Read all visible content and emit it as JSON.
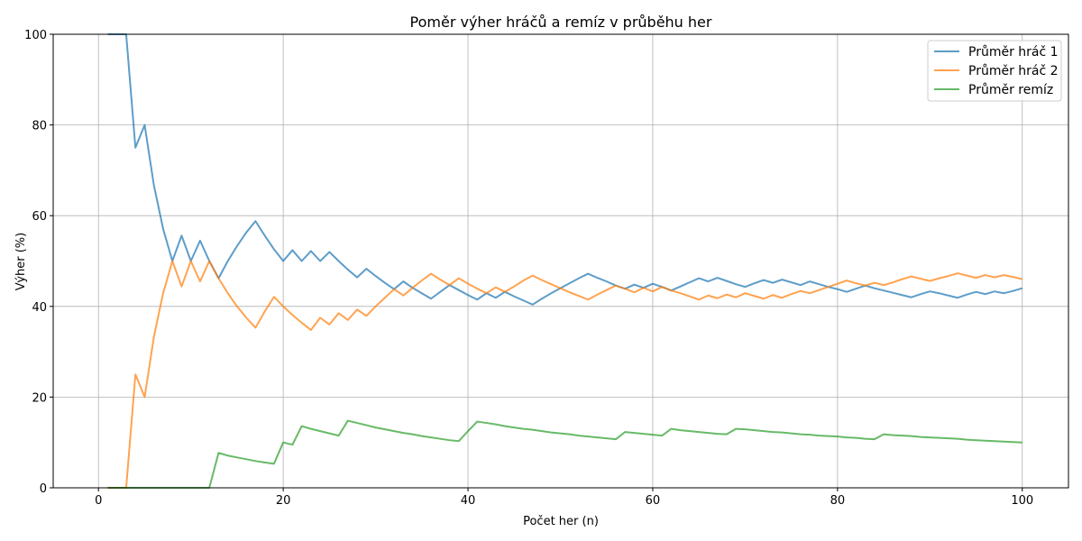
{
  "chart_data": {
    "type": "line",
    "title": "Poměr výher hráčů a remíz v průběhu her",
    "xlabel": "Počet her (n)",
    "ylabel": "Výher (%)",
    "xlim": [
      -4.9,
      105
    ],
    "ylim": [
      0,
      100
    ],
    "xticks": [
      0,
      20,
      40,
      60,
      80,
      100
    ],
    "yticks": [
      0,
      20,
      40,
      60,
      80,
      100
    ],
    "grid": true,
    "legend_position": "top-right",
    "series": [
      {
        "name": "Průměr hráč 1",
        "color": "#1f77b4",
        "points": [
          [
            1,
            100
          ],
          [
            3,
            100
          ],
          [
            4,
            75
          ],
          [
            5,
            80
          ],
          [
            6,
            66.7
          ],
          [
            7,
            57.1
          ],
          [
            8,
            50
          ],
          [
            9,
            55.6
          ],
          [
            10,
            50
          ],
          [
            11,
            54.5
          ],
          [
            12,
            50
          ],
          [
            13,
            46.2
          ],
          [
            14,
            50
          ],
          [
            15,
            53.3
          ],
          [
            16,
            56.3
          ],
          [
            17,
            58.8
          ],
          [
            18,
            55.6
          ],
          [
            19,
            52.6
          ],
          [
            20,
            50
          ],
          [
            21,
            52.4
          ],
          [
            22,
            50
          ],
          [
            23,
            52.2
          ],
          [
            24,
            50
          ],
          [
            25,
            52
          ],
          [
            26,
            50
          ],
          [
            27,
            48.1
          ],
          [
            28,
            46.4
          ],
          [
            29,
            48.3
          ],
          [
            30,
            46.7
          ],
          [
            31,
            45.2
          ],
          [
            32,
            43.8
          ],
          [
            33,
            45.5
          ],
          [
            34,
            44.1
          ],
          [
            35,
            42.9
          ],
          [
            36,
            41.7
          ],
          [
            37,
            43.2
          ],
          [
            38,
            44.7
          ],
          [
            39,
            43.6
          ],
          [
            40,
            42.5
          ],
          [
            41,
            41.5
          ],
          [
            42,
            42.9
          ],
          [
            43,
            41.9
          ],
          [
            44,
            43.2
          ],
          [
            45,
            42.2
          ],
          [
            46,
            41.3
          ],
          [
            47,
            40.4
          ],
          [
            48,
            41.7
          ],
          [
            49,
            42.9
          ],
          [
            50,
            44
          ],
          [
            51,
            45.1
          ],
          [
            52,
            46.2
          ],
          [
            53,
            47.2
          ],
          [
            54,
            46.3
          ],
          [
            55,
            45.5
          ],
          [
            56,
            44.6
          ],
          [
            57,
            43.9
          ],
          [
            58,
            44.8
          ],
          [
            59,
            44.1
          ],
          [
            60,
            45
          ],
          [
            61,
            44.3
          ],
          [
            62,
            43.5
          ],
          [
            63,
            44.4
          ],
          [
            64,
            45.3
          ],
          [
            65,
            46.2
          ],
          [
            66,
            45.5
          ],
          [
            67,
            46.3
          ],
          [
            68,
            45.6
          ],
          [
            69,
            44.9
          ],
          [
            70,
            44.3
          ],
          [
            71,
            45.1
          ],
          [
            72,
            45.8
          ],
          [
            73,
            45.2
          ],
          [
            74,
            45.9
          ],
          [
            75,
            45.3
          ],
          [
            76,
            44.7
          ],
          [
            77,
            45.5
          ],
          [
            78,
            44.9
          ],
          [
            79,
            44.3
          ],
          [
            80,
            43.8
          ],
          [
            81,
            43.2
          ],
          [
            82,
            43.9
          ],
          [
            83,
            44.6
          ],
          [
            84,
            44
          ],
          [
            85,
            43.5
          ],
          [
            86,
            43
          ],
          [
            87,
            42.5
          ],
          [
            88,
            42
          ],
          [
            89,
            42.7
          ],
          [
            90,
            43.3
          ],
          [
            91,
            42.9
          ],
          [
            92,
            42.4
          ],
          [
            93,
            41.9
          ],
          [
            94,
            42.6
          ],
          [
            95,
            43.2
          ],
          [
            96,
            42.7
          ],
          [
            97,
            43.3
          ],
          [
            98,
            42.9
          ],
          [
            99,
            43.4
          ],
          [
            100,
            44
          ]
        ]
      },
      {
        "name": "Průměr hráč 2",
        "color": "#ff7f0e",
        "points": [
          [
            1,
            0
          ],
          [
            3,
            0
          ],
          [
            4,
            25
          ],
          [
            5,
            20
          ],
          [
            6,
            33.3
          ],
          [
            7,
            42.9
          ],
          [
            8,
            50
          ],
          [
            9,
            44.4
          ],
          [
            10,
            50
          ],
          [
            11,
            45.5
          ],
          [
            12,
            50
          ],
          [
            13,
            46.2
          ],
          [
            14,
            42.9
          ],
          [
            15,
            40
          ],
          [
            16,
            37.5
          ],
          [
            17,
            35.3
          ],
          [
            18,
            38.9
          ],
          [
            19,
            42.1
          ],
          [
            20,
            40
          ],
          [
            21,
            38.1
          ],
          [
            22,
            36.4
          ],
          [
            23,
            34.8
          ],
          [
            24,
            37.5
          ],
          [
            25,
            36
          ],
          [
            26,
            38.5
          ],
          [
            27,
            37
          ],
          [
            28,
            39.3
          ],
          [
            29,
            37.9
          ],
          [
            30,
            40
          ],
          [
            31,
            41.9
          ],
          [
            32,
            43.8
          ],
          [
            33,
            42.4
          ],
          [
            34,
            44.1
          ],
          [
            35,
            45.7
          ],
          [
            36,
            47.2
          ],
          [
            37,
            45.9
          ],
          [
            38,
            44.7
          ],
          [
            39,
            46.2
          ],
          [
            40,
            45
          ],
          [
            41,
            43.9
          ],
          [
            42,
            42.9
          ],
          [
            43,
            44.2
          ],
          [
            44,
            43.2
          ],
          [
            45,
            44.4
          ],
          [
            46,
            45.7
          ],
          [
            47,
            46.8
          ],
          [
            48,
            45.8
          ],
          [
            49,
            44.9
          ],
          [
            50,
            44
          ],
          [
            51,
            43.1
          ],
          [
            52,
            42.3
          ],
          [
            53,
            41.5
          ],
          [
            54,
            42.6
          ],
          [
            55,
            43.6
          ],
          [
            56,
            44.6
          ],
          [
            57,
            43.9
          ],
          [
            58,
            43.1
          ],
          [
            59,
            44.1
          ],
          [
            60,
            43.3
          ],
          [
            61,
            44.3
          ],
          [
            62,
            43.5
          ],
          [
            63,
            42.9
          ],
          [
            64,
            42.2
          ],
          [
            65,
            41.5
          ],
          [
            66,
            42.4
          ],
          [
            67,
            41.8
          ],
          [
            68,
            42.6
          ],
          [
            69,
            42
          ],
          [
            70,
            42.9
          ],
          [
            71,
            42.3
          ],
          [
            72,
            41.7
          ],
          [
            73,
            42.5
          ],
          [
            74,
            41.9
          ],
          [
            75,
            42.7
          ],
          [
            76,
            43.4
          ],
          [
            77,
            42.9
          ],
          [
            78,
            43.6
          ],
          [
            79,
            44.3
          ],
          [
            80,
            45
          ],
          [
            81,
            45.7
          ],
          [
            82,
            45.1
          ],
          [
            83,
            44.6
          ],
          [
            84,
            45.2
          ],
          [
            85,
            44.7
          ],
          [
            86,
            45.3
          ],
          [
            87,
            46
          ],
          [
            88,
            46.6
          ],
          [
            89,
            46.1
          ],
          [
            90,
            45.6
          ],
          [
            91,
            46.2
          ],
          [
            92,
            46.7
          ],
          [
            93,
            47.3
          ],
          [
            94,
            46.8
          ],
          [
            95,
            46.3
          ],
          [
            96,
            46.9
          ],
          [
            97,
            46.4
          ],
          [
            98,
            46.9
          ],
          [
            99,
            46.5
          ],
          [
            100,
            46
          ]
        ]
      },
      {
        "name": "Průměr remíz",
        "color": "#2ca02c",
        "points": [
          [
            1,
            0
          ],
          [
            12,
            0
          ],
          [
            13,
            7.7
          ],
          [
            14,
            7.1
          ],
          [
            15,
            6.7
          ],
          [
            16,
            6.3
          ],
          [
            17,
            5.9
          ],
          [
            18,
            5.6
          ],
          [
            19,
            5.3
          ],
          [
            20,
            10
          ],
          [
            21,
            9.5
          ],
          [
            22,
            13.6
          ],
          [
            23,
            13
          ],
          [
            24,
            12.5
          ],
          [
            25,
            12
          ],
          [
            26,
            11.5
          ],
          [
            27,
            14.8
          ],
          [
            28,
            14.3
          ],
          [
            29,
            13.8
          ],
          [
            30,
            13.3
          ],
          [
            31,
            12.9
          ],
          [
            32,
            12.5
          ],
          [
            33,
            12.1
          ],
          [
            34,
            11.8
          ],
          [
            35,
            11.4
          ],
          [
            36,
            11.1
          ],
          [
            37,
            10.8
          ],
          [
            38,
            10.5
          ],
          [
            39,
            10.3
          ],
          [
            40,
            12.5
          ],
          [
            41,
            14.6
          ],
          [
            42,
            14.3
          ],
          [
            43,
            14
          ],
          [
            44,
            13.6
          ],
          [
            45,
            13.3
          ],
          [
            46,
            13
          ],
          [
            47,
            12.8
          ],
          [
            48,
            12.5
          ],
          [
            49,
            12.2
          ],
          [
            50,
            12
          ],
          [
            51,
            11.8
          ],
          [
            52,
            11.5
          ],
          [
            53,
            11.3
          ],
          [
            54,
            11.1
          ],
          [
            55,
            10.9
          ],
          [
            56,
            10.7
          ],
          [
            57,
            12.3
          ],
          [
            58,
            12.1
          ],
          [
            59,
            11.9
          ],
          [
            60,
            11.7
          ],
          [
            61,
            11.5
          ],
          [
            62,
            13
          ],
          [
            63,
            12.7
          ],
          [
            64,
            12.5
          ],
          [
            65,
            12.3
          ],
          [
            66,
            12.1
          ],
          [
            67,
            11.9
          ],
          [
            68,
            11.8
          ],
          [
            69,
            13
          ],
          [
            70,
            12.9
          ],
          [
            71,
            12.7
          ],
          [
            72,
            12.5
          ],
          [
            73,
            12.3
          ],
          [
            74,
            12.2
          ],
          [
            75,
            12
          ],
          [
            76,
            11.8
          ],
          [
            77,
            11.7
          ],
          [
            78,
            11.5
          ],
          [
            79,
            11.4
          ],
          [
            80,
            11.3
          ],
          [
            81,
            11.1
          ],
          [
            82,
            11
          ],
          [
            83,
            10.8
          ],
          [
            84,
            10.7
          ],
          [
            85,
            11.8
          ],
          [
            86,
            11.6
          ],
          [
            87,
            11.5
          ],
          [
            88,
            11.4
          ],
          [
            89,
            11.2
          ],
          [
            90,
            11.1
          ],
          [
            91,
            11
          ],
          [
            92,
            10.9
          ],
          [
            93,
            10.8
          ],
          [
            94,
            10.6
          ],
          [
            95,
            10.5
          ],
          [
            96,
            10.4
          ],
          [
            97,
            10.3
          ],
          [
            98,
            10.2
          ],
          [
            99,
            10.1
          ],
          [
            100,
            10
          ]
        ]
      }
    ]
  }
}
